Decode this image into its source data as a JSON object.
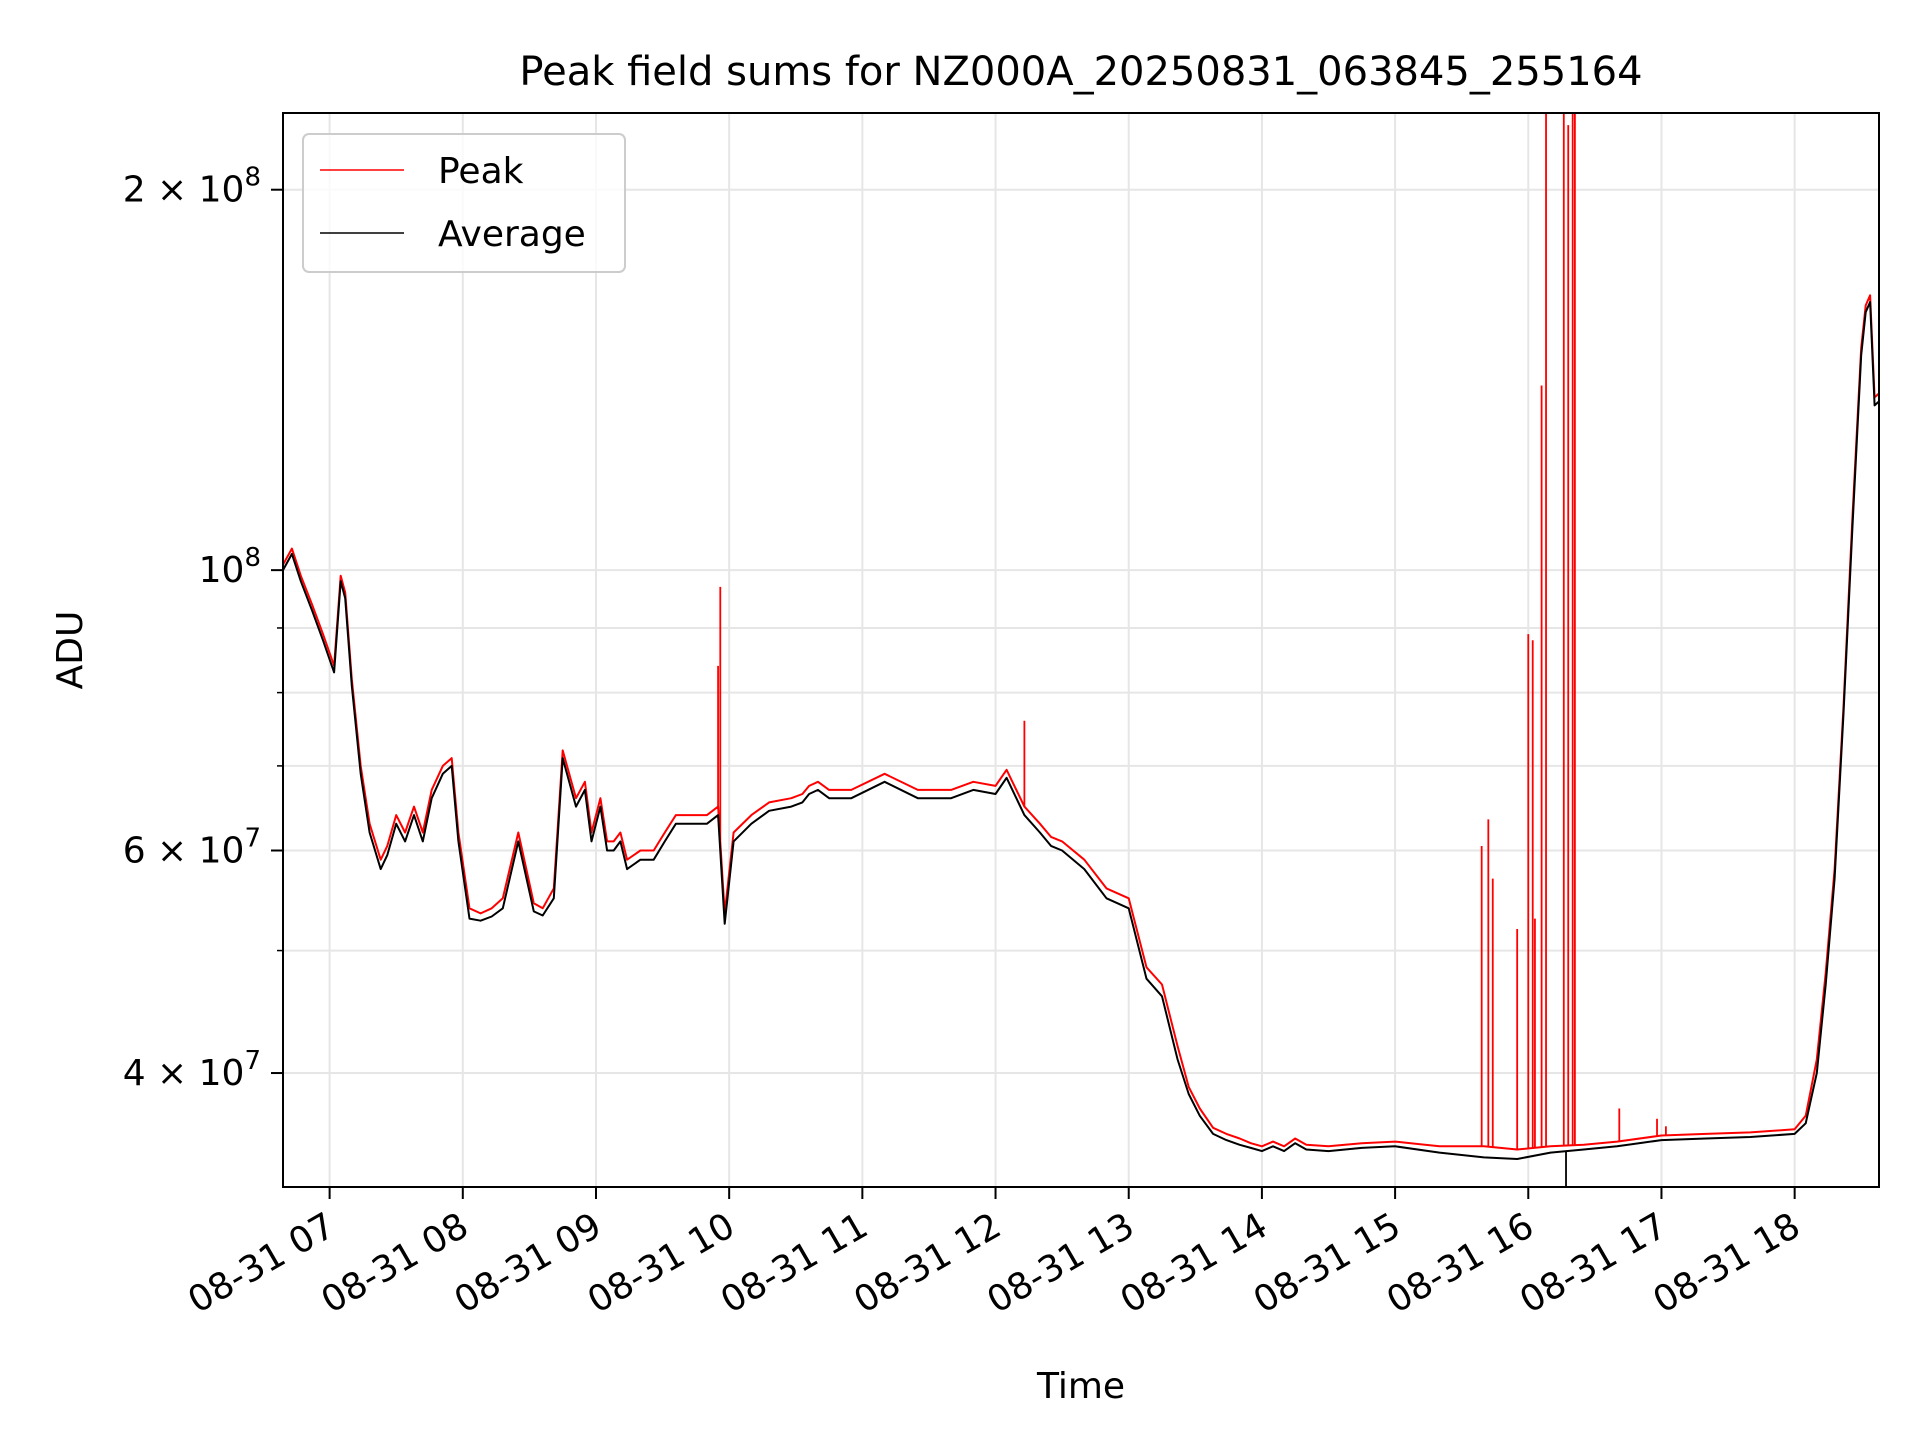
{
  "chart_data": {
    "type": "line",
    "title": "Peak field sums for NZ000A_20250831_063845_255164",
    "xlabel": "Time",
    "ylabel": "ADU",
    "y_scale": "log",
    "ylim": [
      32500000,
      230000000
    ],
    "xlim": [
      "08-31 06:39",
      "08-31 18:38"
    ],
    "grid": true,
    "legend_position": "top-left",
    "x_ticks": [
      {
        "t": "08-31 07:00",
        "label": "08-31 07"
      },
      {
        "t": "08-31 08:00",
        "label": "08-31 08"
      },
      {
        "t": "08-31 09:00",
        "label": "08-31 09"
      },
      {
        "t": "08-31 10:00",
        "label": "08-31 10"
      },
      {
        "t": "08-31 11:00",
        "label": "08-31 11"
      },
      {
        "t": "08-31 12:00",
        "label": "08-31 12"
      },
      {
        "t": "08-31 13:00",
        "label": "08-31 13"
      },
      {
        "t": "08-31 14:00",
        "label": "08-31 14"
      },
      {
        "t": "08-31 15:00",
        "label": "08-31 15"
      },
      {
        "t": "08-31 16:00",
        "label": "08-31 16"
      },
      {
        "t": "08-31 17:00",
        "label": "08-31 17"
      },
      {
        "t": "08-31 18:00",
        "label": "08-31 18"
      }
    ],
    "y_major_ticks": [
      {
        "value": 40000000,
        "base": "4 × 10",
        "exp": "7"
      },
      {
        "value": 60000000,
        "base": "6 × 10",
        "exp": "7"
      },
      {
        "value": 100000000,
        "base": "10",
        "exp": "8"
      },
      {
        "value": 200000000,
        "base": "2 × 10",
        "exp": "8"
      }
    ],
    "y_minor_ticks": [
      50000000,
      70000000,
      80000000,
      90000000
    ],
    "series": [
      {
        "name": "Peak",
        "color": "#ff0000",
        "x": [
          "06:39",
          "06:43",
          "06:47",
          "06:52",
          "06:57",
          "07:02",
          "07:05",
          "07:07",
          "07:10",
          "07:14",
          "07:18",
          "07:23",
          "07:26",
          "07:30",
          "07:34",
          "07:38",
          "07:42",
          "07:46",
          "07:51",
          "07:55",
          "07:58",
          "08:03",
          "08:08",
          "08:13",
          "08:18",
          "08:25",
          "08:32",
          "08:36",
          "08:41",
          "08:45",
          "08:51",
          "08:55",
          "08:58",
          "09:02",
          "09:05",
          "09:08",
          "09:11",
          "09:14",
          "09:20",
          "09:26",
          "09:31",
          "09:36",
          "09:43",
          "09:50",
          "09:55",
          "09:58",
          "10:02",
          "10:10",
          "10:18",
          "10:28",
          "10:33",
          "10:36",
          "10:40",
          "10:45",
          "10:55",
          "11:10",
          "11:25",
          "11:40",
          "11:50",
          "12:00",
          "12:05",
          "12:13",
          "12:20",
          "12:25",
          "12:30",
          "12:40",
          "12:50",
          "13:00",
          "13:08",
          "13:15",
          "13:22",
          "13:27",
          "13:32",
          "13:38",
          "13:44",
          "13:50",
          "13:55",
          "14:00",
          "14:05",
          "14:10",
          "14:15",
          "14:20",
          "14:30",
          "14:45",
          "15:00",
          "15:20",
          "15:40",
          "15:55",
          "16:10",
          "16:25",
          "16:40",
          "17:00",
          "17:20",
          "17:40",
          "18:00",
          "18:05",
          "18:10",
          "18:14",
          "18:18",
          "18:22",
          "18:26",
          "18:30",
          "18:32",
          "18:34",
          "18:36",
          "18:38"
        ],
        "values": [
          101000000,
          104000000,
          99000000,
          94000000,
          89000000,
          84000000,
          99000000,
          96000000,
          82000000,
          70000000,
          63000000,
          59000000,
          60500000,
          64000000,
          62000000,
          65000000,
          62000000,
          67000000,
          70000000,
          71000000,
          62000000,
          54000000,
          53500000,
          54000000,
          55000000,
          62000000,
          54500000,
          54000000,
          56000000,
          72000000,
          66000000,
          68000000,
          62000000,
          66000000,
          61000000,
          61000000,
          62000000,
          59000000,
          60000000,
          60000000,
          62000000,
          64000000,
          64000000,
          64000000,
          65000000,
          53500000,
          62000000,
          64000000,
          65500000,
          66000000,
          66500000,
          67500000,
          68000000,
          67000000,
          67000000,
          69000000,
          67000000,
          67000000,
          68000000,
          67500000,
          69500000,
          65000000,
          63000000,
          61500000,
          61000000,
          59000000,
          56000000,
          55000000,
          48500000,
          47000000,
          42000000,
          39000000,
          37500000,
          36200000,
          35800000,
          35500000,
          35200000,
          35000000,
          35300000,
          35000000,
          35500000,
          35100000,
          35000000,
          35200000,
          35300000,
          35000000,
          35000000,
          34800000,
          35000000,
          35100000,
          35300000,
          35700000,
          35800000,
          35900000,
          36100000,
          37000000,
          41000000,
          48000000,
          58000000,
          78000000,
          110000000,
          150000000,
          162000000,
          165000000,
          137000000,
          138000000
        ],
        "spikes": [
          {
            "t": "09:55",
            "value": 84000000
          },
          {
            "t": "09:56",
            "value": 97000000
          },
          {
            "t": "12:13",
            "value": 76000000
          },
          {
            "t": "15:39",
            "value": 60500000
          },
          {
            "t": "15:42",
            "value": 63500000
          },
          {
            "t": "15:44",
            "value": 57000000
          },
          {
            "t": "15:55",
            "value": 52000000
          },
          {
            "t": "16:00",
            "value": 89000000
          },
          {
            "t": "16:02",
            "value": 88000000
          },
          {
            "t": "16:03",
            "value": 53000000
          },
          {
            "t": "16:06",
            "value": 140000000
          },
          {
            "t": "16:08",
            "value": 230000000
          },
          {
            "t": "16:16",
            "value": 230000000
          },
          {
            "t": "16:18",
            "value": 225000000
          },
          {
            "t": "16:20",
            "value": 230000000
          },
          {
            "t": "16:21",
            "value": 230000000
          },
          {
            "t": "16:41",
            "value": 37500000
          },
          {
            "t": "16:58",
            "value": 36800000
          },
          {
            "t": "17:02",
            "value": 36300000
          }
        ]
      },
      {
        "name": "Average",
        "color": "#000000",
        "x": [
          "06:39",
          "06:43",
          "06:47",
          "06:52",
          "06:57",
          "07:02",
          "07:05",
          "07:07",
          "07:10",
          "07:14",
          "07:18",
          "07:23",
          "07:26",
          "07:30",
          "07:34",
          "07:38",
          "07:42",
          "07:46",
          "07:51",
          "07:55",
          "07:58",
          "08:03",
          "08:08",
          "08:13",
          "08:18",
          "08:25",
          "08:32",
          "08:36",
          "08:41",
          "08:45",
          "08:51",
          "08:55",
          "08:58",
          "09:02",
          "09:05",
          "09:08",
          "09:11",
          "09:14",
          "09:20",
          "09:26",
          "09:31",
          "09:36",
          "09:43",
          "09:50",
          "09:55",
          "09:58",
          "10:02",
          "10:10",
          "10:18",
          "10:28",
          "10:33",
          "10:36",
          "10:40",
          "10:45",
          "10:55",
          "11:10",
          "11:25",
          "11:40",
          "11:50",
          "12:00",
          "12:05",
          "12:13",
          "12:20",
          "12:25",
          "12:30",
          "12:40",
          "12:50",
          "13:00",
          "13:08",
          "13:15",
          "13:22",
          "13:27",
          "13:32",
          "13:38",
          "13:44",
          "13:50",
          "13:55",
          "14:00",
          "14:05",
          "14:10",
          "14:15",
          "14:20",
          "14:30",
          "14:45",
          "15:00",
          "15:20",
          "15:40",
          "15:55",
          "16:10",
          "16:25",
          "16:40",
          "17:00",
          "17:20",
          "17:40",
          "18:00",
          "18:05",
          "18:10",
          "18:14",
          "18:18",
          "18:22",
          "18:26",
          "18:30",
          "18:32",
          "18:34",
          "18:36",
          "18:38"
        ],
        "values": [
          100000000,
          103000000,
          98000000,
          93000000,
          88000000,
          83000000,
          98000000,
          95000000,
          81000000,
          69000000,
          62000000,
          58000000,
          59500000,
          63000000,
          61000000,
          64000000,
          61000000,
          66000000,
          69000000,
          70000000,
          61000000,
          53000000,
          52800000,
          53200000,
          54000000,
          61000000,
          53700000,
          53300000,
          55000000,
          71000000,
          65000000,
          67000000,
          61000000,
          65000000,
          60000000,
          60000000,
          61000000,
          58000000,
          59000000,
          59000000,
          61000000,
          63000000,
          63000000,
          63000000,
          64000000,
          52500000,
          61000000,
          63000000,
          64500000,
          65000000,
          65500000,
          66500000,
          67000000,
          66000000,
          66000000,
          68000000,
          66000000,
          66000000,
          67000000,
          66500000,
          68500000,
          64000000,
          62000000,
          60500000,
          60000000,
          58000000,
          55000000,
          54000000,
          47500000,
          46000000,
          41000000,
          38500000,
          37000000,
          35800000,
          35400000,
          35100000,
          34900000,
          34700000,
          35000000,
          34700000,
          35200000,
          34800000,
          34700000,
          34900000,
          35000000,
          34600000,
          34300000,
          34200000,
          34600000,
          34800000,
          35000000,
          35400000,
          35500000,
          35600000,
          35800000,
          36500000,
          40000000,
          47000000,
          57000000,
          77000000,
          108000000,
          148000000,
          160000000,
          163000000,
          135000000,
          136000000
        ],
        "spikes": [
          {
            "t": "16:17",
            "value": 32500000
          }
        ]
      }
    ]
  }
}
